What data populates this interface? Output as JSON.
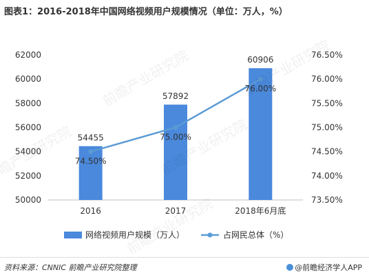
{
  "title": "图表1：2016-2018年中国网络视频用户规模情况（单位：万人，%）",
  "source": "资料来源：CNNIC 前瞻产业研究院整理",
  "brand": "@前瞻经济学人APP",
  "watermark": "前瞻产业研究院",
  "chart_data": {
    "type": "bar+line",
    "categories": [
      "2016",
      "2017",
      "2018年6月底"
    ],
    "series": [
      {
        "name": "网络视频用户规模（万人）",
        "type": "bar",
        "axis": "left",
        "values": [
          54455,
          57892,
          60906
        ],
        "labels": [
          "54455",
          "57892",
          "60906"
        ],
        "color": "#4a89dc"
      },
      {
        "name": "占网民总体（%）",
        "type": "line",
        "axis": "right",
        "values": [
          74.5,
          75.0,
          76.0
        ],
        "labels": [
          "74.50%",
          "75.00%",
          "76.00%"
        ],
        "color": "#5b9bd5"
      }
    ],
    "left_axis": {
      "ylim": [
        50000,
        62000
      ],
      "ticks": [
        "50000",
        "52000",
        "54000",
        "56000",
        "58000",
        "60000",
        "62000"
      ]
    },
    "right_axis": {
      "ylim": [
        73.5,
        76.5
      ],
      "ticks": [
        "73.50%",
        "74.00%",
        "74.50%",
        "75.00%",
        "75.50%",
        "76.00%",
        "76.50%"
      ]
    },
    "legend_position": "bottom"
  }
}
